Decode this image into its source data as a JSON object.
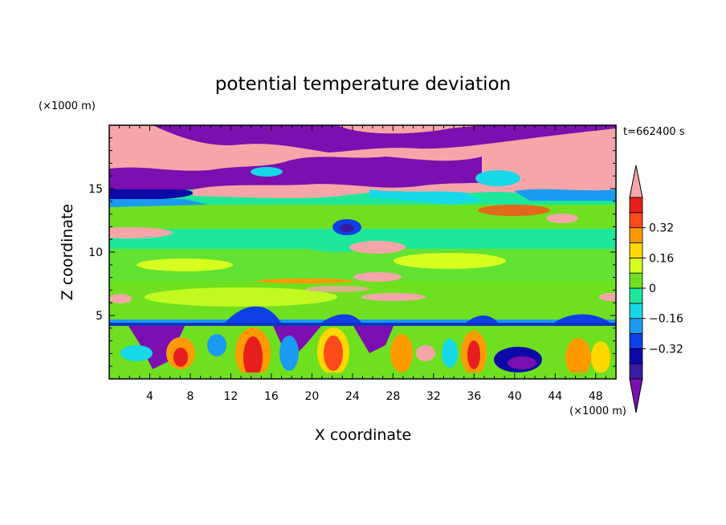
{
  "chart_data": {
    "type": "heatmap",
    "title": "potential temperature deviation",
    "time_label": "t=662400 s",
    "xlabel": "X coordinate",
    "ylabel": "Z coordinate",
    "x_unit": "(×1000 m)",
    "y_unit": "(×1000 m)",
    "xlim": [
      0,
      50
    ],
    "ylim": [
      0,
      20
    ],
    "x_ticks": [
      4,
      8,
      12,
      16,
      20,
      24,
      28,
      32,
      36,
      40,
      44,
      48
    ],
    "y_ticks": [
      5,
      10,
      15
    ],
    "colorbar": {
      "levels": [
        -0.48,
        -0.4,
        -0.32,
        -0.24,
        -0.16,
        -0.08,
        0,
        0.08,
        0.16,
        0.24,
        0.32,
        0.4
      ],
      "colors": [
        "#7b0fb0",
        "#3a1a9e",
        "#0c0aa6",
        "#0f3fe6",
        "#1a9af0",
        "#16d8e8",
        "#1de89a",
        "#6fe020",
        "#d6ff20",
        "#ffd800",
        "#ff9a00",
        "#ff4a1a",
        "#e81e1e",
        "#f6a6a8"
      ],
      "labels": [
        "-0.32",
        "-0.16",
        "0",
        "0.16",
        "0.32"
      ]
    }
  }
}
